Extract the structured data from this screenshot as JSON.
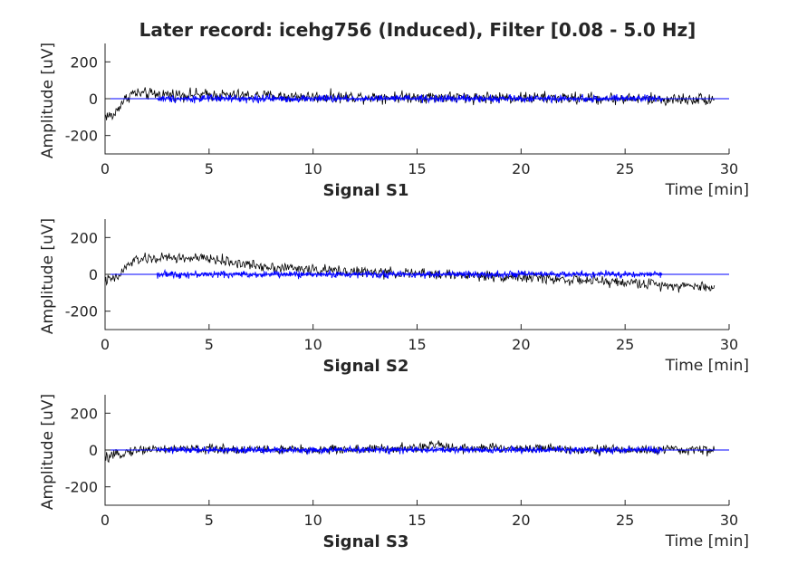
{
  "title": "Later record: icehg756 (Induced), Filter [0.08 - 5.0 Hz]",
  "colors": {
    "signal": "#000000",
    "filtered": "#0000ff",
    "zero_line": "#0000ff",
    "axes": "#262626"
  },
  "chart_data": [
    {
      "type": "line",
      "subtitle": "Signal S1",
      "xlabel": "Time [min]",
      "ylabel": "Amplitude [uV]",
      "xlim": [
        0,
        30
      ],
      "ylim": [
        -300,
        300
      ],
      "xticks": [
        0,
        5,
        10,
        15,
        20,
        25,
        30
      ],
      "yticks": [
        -200,
        0,
        200
      ],
      "grid": false,
      "series": [
        {
          "color": "#000000",
          "x_range": [
            0,
            29.3
          ],
          "trend": [
            [
              0,
              -90
            ],
            [
              0.4,
              -95
            ],
            [
              0.8,
              -20
            ],
            [
              1.3,
              30
            ],
            [
              2,
              25
            ],
            [
              5,
              20
            ],
            [
              10,
              10
            ],
            [
              15,
              10
            ],
            [
              20,
              5
            ],
            [
              25,
              0
            ],
            [
              27,
              -5
            ],
            [
              29.3,
              0
            ]
          ],
          "noise": 16
        },
        {
          "color": "#0000ff",
          "x_range": [
            2.5,
            26.8
          ],
          "trend": [
            [
              2.5,
              0
            ],
            [
              26.8,
              0
            ]
          ],
          "noise": 10
        }
      ]
    },
    {
      "type": "line",
      "subtitle": "Signal S2",
      "xlabel": "Time [min]",
      "ylabel": "Amplitude [uV]",
      "xlim": [
        0,
        30
      ],
      "ylim": [
        -300,
        300
      ],
      "xticks": [
        0,
        5,
        10,
        15,
        20,
        25,
        30
      ],
      "yticks": [
        -200,
        0,
        200
      ],
      "grid": false,
      "series": [
        {
          "color": "#000000",
          "x_range": [
            0,
            29.3
          ],
          "trend": [
            [
              0,
              -35
            ],
            [
              0.6,
              -20
            ],
            [
              1,
              40
            ],
            [
              1.5,
              80
            ],
            [
              3,
              90
            ],
            [
              5,
              85
            ],
            [
              7,
              50
            ],
            [
              10,
              25
            ],
            [
              13,
              10
            ],
            [
              16,
              0
            ],
            [
              20,
              -15
            ],
            [
              25,
              -45
            ],
            [
              29.3,
              -70
            ]
          ],
          "noise": 14
        },
        {
          "color": "#0000ff",
          "x_range": [
            2.5,
            26.8
          ],
          "trend": [
            [
              2.5,
              0
            ],
            [
              26.8,
              0
            ]
          ],
          "noise": 9
        }
      ]
    },
    {
      "type": "line",
      "subtitle": "Signal S3",
      "xlabel": "Time [min]",
      "ylabel": "Amplitude [uV]",
      "xlim": [
        0,
        30
      ],
      "ylim": [
        -300,
        300
      ],
      "xticks": [
        0,
        5,
        10,
        15,
        20,
        25,
        30
      ],
      "yticks": [
        -200,
        0,
        200
      ],
      "grid": false,
      "series": [
        {
          "color": "#000000",
          "x_range": [
            0,
            29.3
          ],
          "trend": [
            [
              0,
              -45
            ],
            [
              0.4,
              -35
            ],
            [
              1,
              -10
            ],
            [
              2,
              5
            ],
            [
              5,
              5
            ],
            [
              10,
              0
            ],
            [
              15,
              10
            ],
            [
              16,
              30
            ],
            [
              17,
              10
            ],
            [
              20,
              10
            ],
            [
              25,
              0
            ],
            [
              29.3,
              0
            ]
          ],
          "noise": 13
        },
        {
          "color": "#0000ff",
          "x_range": [
            2.5,
            26.8
          ],
          "trend": [
            [
              2.5,
              0
            ],
            [
              26.8,
              0
            ]
          ],
          "noise": 9
        }
      ]
    }
  ]
}
